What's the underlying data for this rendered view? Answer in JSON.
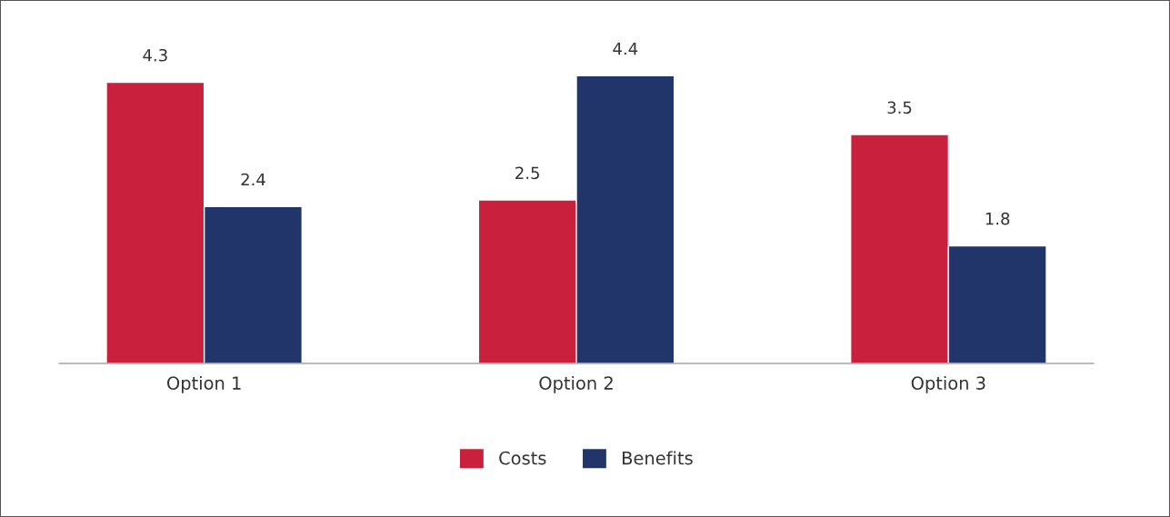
{
  "chart_data": {
    "type": "bar",
    "categories": [
      "Option 1",
      "Option 2",
      "Option 3"
    ],
    "series": [
      {
        "name": "Costs",
        "color": "#c8203d",
        "values": [
          4.3,
          2.5,
          3.5
        ]
      },
      {
        "name": "Benefits",
        "color": "#22356a",
        "values": [
          2.4,
          4.4,
          1.8
        ]
      }
    ],
    "data_labels": true,
    "legend": "bottom",
    "grid": false
  }
}
